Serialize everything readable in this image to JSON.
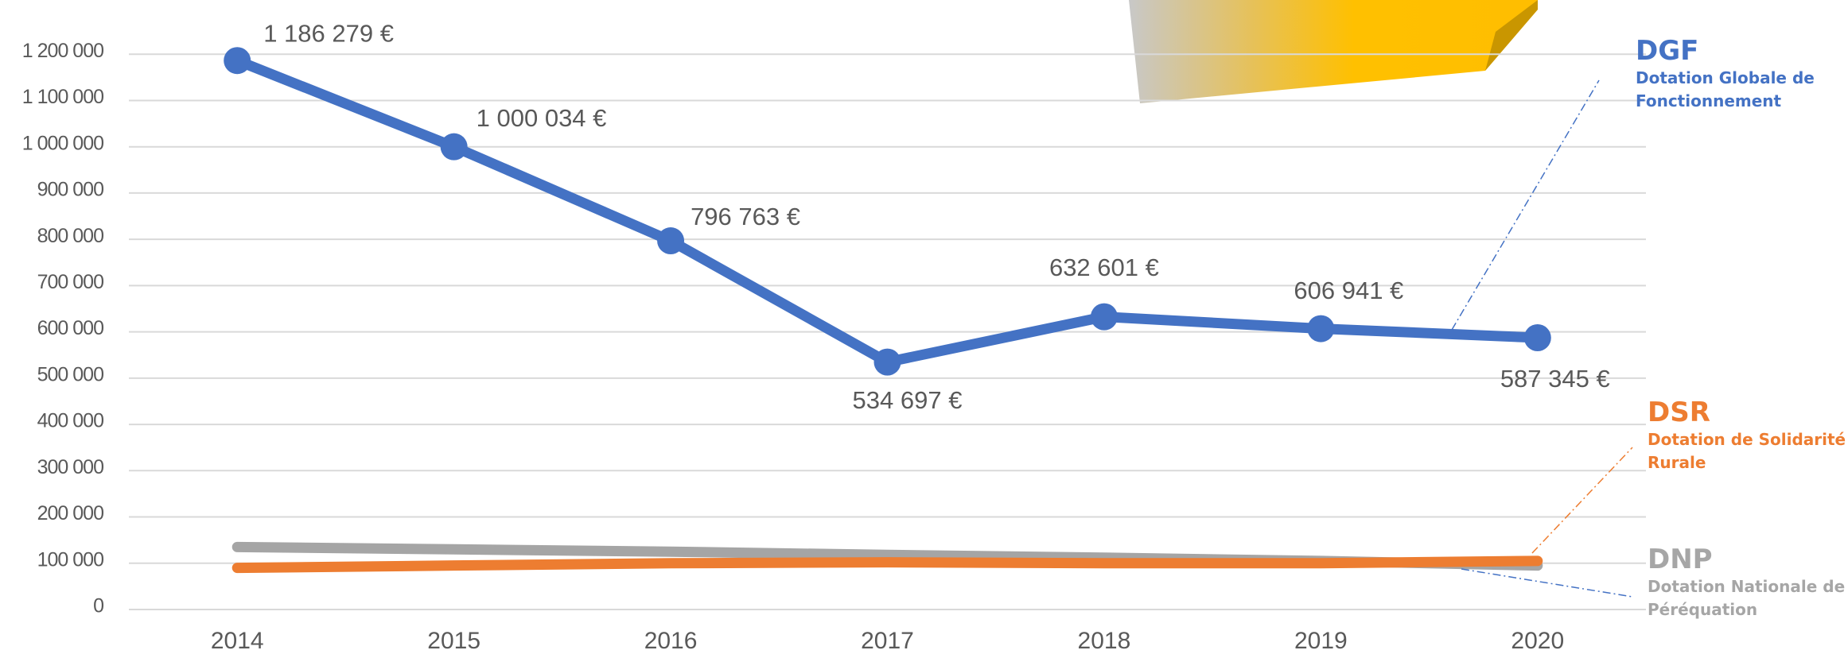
{
  "chart_data": {
    "type": "line",
    "categories": [
      "2014",
      "2015",
      "2016",
      "2017",
      "2018",
      "2019",
      "2020"
    ],
    "series": [
      {
        "name": "DNP",
        "description": "Dotation Nationale de Péréquation",
        "color": "#a5a5a5",
        "values": [
          135000,
          130000,
          125000,
          118000,
          112000,
          105000,
          95000
        ]
      },
      {
        "name": "DSR",
        "description": "Dotation de Solidarité Rurale",
        "color": "#ed7d31",
        "values": [
          90000,
          95000,
          100000,
          102000,
          100000,
          100000,
          105000
        ]
      },
      {
        "name": "DGF",
        "description": "Dotation Globale de Fonctionnement",
        "color": "#4472c4",
        "values": [
          1186279,
          1000034,
          796763,
          534697,
          632601,
          606941,
          587345
        ],
        "value_labels": [
          "1 186 279 €",
          "1 000 034 €",
          "796 763 €",
          "534 697 €",
          "632 601 €",
          "606 941 €",
          "587 345 €"
        ]
      }
    ],
    "ylim": [
      0,
      1300000
    ],
    "yticks": [
      0,
      {
        "value": 100000,
        "label": "100 000"
      },
      {
        "value": 200000,
        "label": "200 000"
      },
      {
        "value": 300000,
        "label": "300 000"
      },
      {
        "value": 400000,
        "label": "400 000"
      },
      {
        "value": 500000,
        "label": "500 000"
      },
      {
        "value": 600000,
        "label": "600 000"
      },
      {
        "value": 700000,
        "label": "700 000"
      },
      {
        "value": 800000,
        "label": "800 000"
      },
      {
        "value": 900000,
        "label": "900 000"
      },
      {
        "value": 1000000,
        "label": "1 000 000"
      },
      {
        "value": 1100000,
        "label": "1 100 000"
      },
      {
        "value": 1200000,
        "label": "1 200 000"
      }
    ],
    "grid": true
  }
}
